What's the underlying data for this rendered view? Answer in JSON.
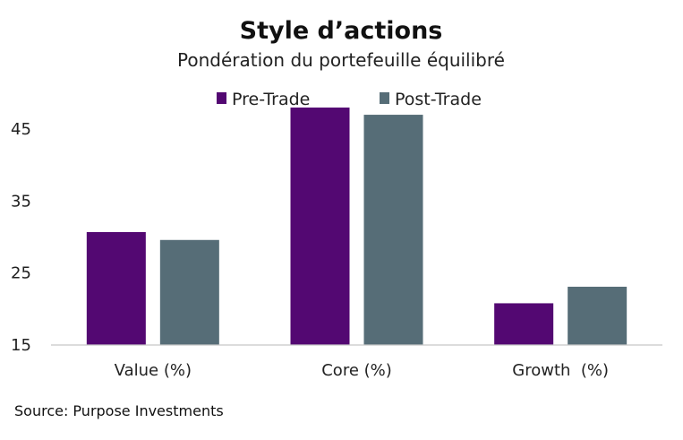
{
  "chart_data": {
    "type": "bar",
    "title": "Style d’actions",
    "subtitle": "Pondération du portefeuille équilibré",
    "xlabel": "",
    "ylabel": "",
    "categories": [
      "Value (%)",
      "Core (%)",
      "Growth  (%)"
    ],
    "series": [
      {
        "name": "Pre-Trade",
        "values": [
          30.7,
          48.0,
          20.8
        ],
        "color": "#530872"
      },
      {
        "name": "Post-Trade",
        "values": [
          29.6,
          47.0,
          23.1
        ],
        "color": "#566d77"
      }
    ],
    "ylim": [
      15,
      49
    ],
    "yticks": [
      15,
      25,
      35,
      45
    ],
    "grid": false,
    "legend_position": "top-center",
    "source": "Source: Purpose Investments"
  }
}
